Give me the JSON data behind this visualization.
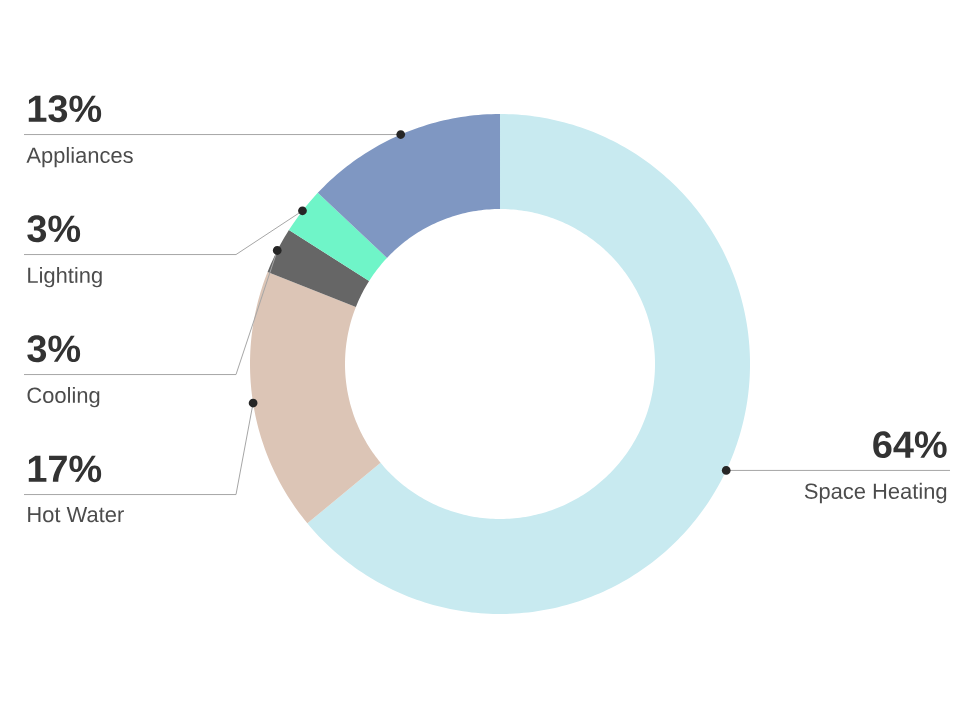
{
  "chart_data": {
    "type": "donut",
    "categories": [
      "Space Heating",
      "Hot Water",
      "Cooling",
      "Lighting",
      "Appliances"
    ],
    "values": [
      64,
      17,
      3,
      3,
      13
    ],
    "value_labels": [
      "64%",
      "17%",
      "3%",
      "3%",
      "13%"
    ],
    "colors": [
      "#c8eaf0",
      "#dcc5b6",
      "#666666",
      "#6ff5c8",
      "#7f97c2"
    ]
  }
}
